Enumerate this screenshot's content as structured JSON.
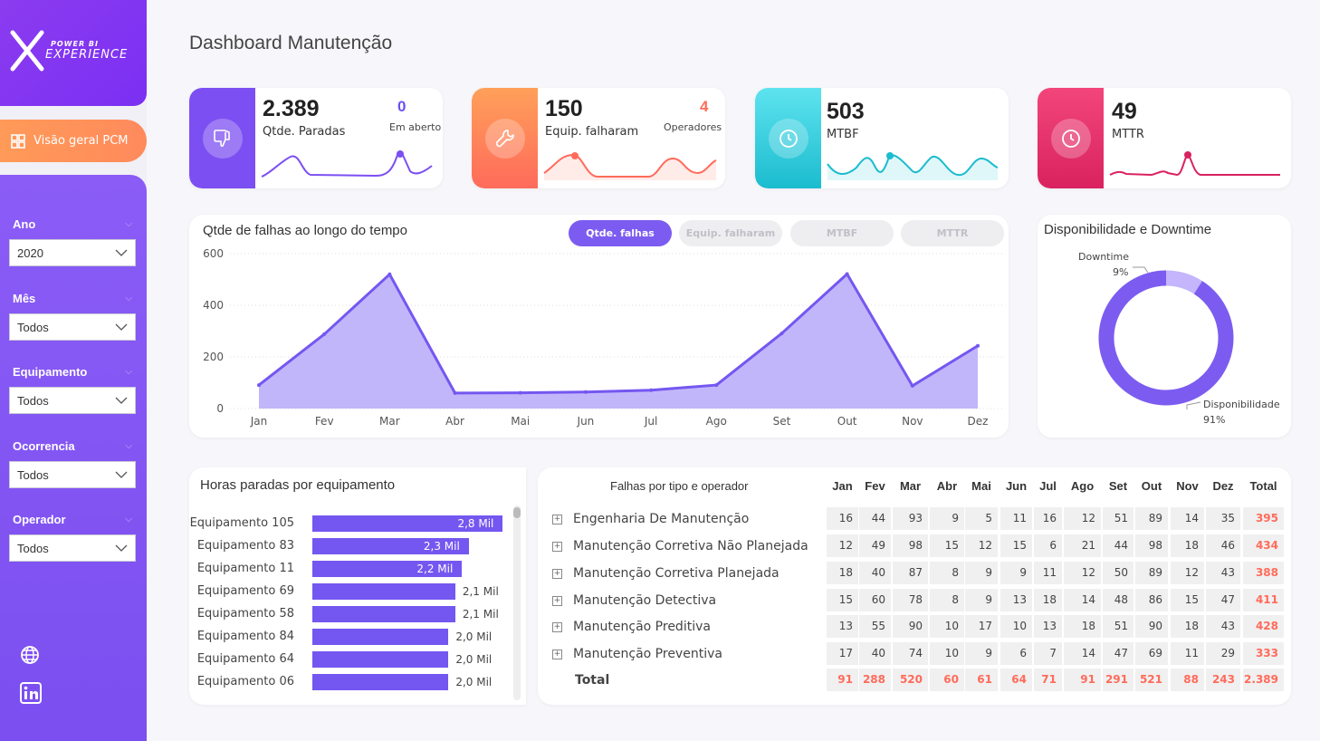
{
  "brand": {
    "line1": "POWER BI",
    "line2": "EXPERIENCE"
  },
  "nav": {
    "label": "Visão geral PCM"
  },
  "filters": [
    {
      "label": "Ano",
      "value": "2020"
    },
    {
      "label": "Mês",
      "value": "Todos"
    },
    {
      "label": "Equipamento",
      "value": "Todos"
    },
    {
      "label": "Ocorrencia",
      "value": "Todos"
    },
    {
      "label": "Operador",
      "value": "Todos"
    }
  ],
  "title": "Dashboard Manutenção",
  "kpis": [
    {
      "value": "2.389",
      "label": "Qtde. Paradas",
      "sub_value": "0",
      "sub_label": "Em aberto",
      "color": "#7c4ff2",
      "sub_color": "#6e4ff0",
      "icon": "thumbs-down-icon"
    },
    {
      "value": "150",
      "label": "Equip. falharam",
      "sub_value": "4",
      "sub_label": "Operadores",
      "color": "#ff7b5c",
      "sub_color": "#ff6b5b",
      "icon": "wrench-icon"
    },
    {
      "value": "503",
      "label": "MTBF",
      "color": "#22c7d6",
      "icon": "clock-icon"
    },
    {
      "value": "49",
      "label": "MTTR",
      "color": "#e8336d",
      "icon": "clock-icon"
    }
  ],
  "falhas_chart": {
    "title": "Qtde de falhas ao longo do tempo",
    "tabs": [
      "Qtde. falhas",
      "Equip. falharam",
      "MTBF",
      "MTTR"
    ],
    "active_tab": 0
  },
  "donut": {
    "title": "Disponibilidade e Downtime",
    "downtime_label": "Downtime",
    "downtime_pct": "9%",
    "disp_label": "Disponibilidade",
    "disp_pct": "91%"
  },
  "horas": {
    "title": "Horas paradas por equipamento"
  },
  "matrix": {
    "row_header": "Falhas por tipo e operador",
    "months": [
      "Jan",
      "Fev",
      "Mar",
      "Abr",
      "Mai",
      "Jun",
      "Jul",
      "Ago",
      "Set",
      "Out",
      "Nov",
      "Dez",
      "Total"
    ],
    "rows": [
      {
        "label": "Engenharia De Manutenção",
        "values": [
          "16",
          "44",
          "93",
          "9",
          "5",
          "11",
          "16",
          "12",
          "51",
          "89",
          "14",
          "35",
          "395"
        ]
      },
      {
        "label": "Manutenção Corretiva Não Planejada",
        "values": [
          "12",
          "49",
          "98",
          "15",
          "12",
          "15",
          "6",
          "21",
          "44",
          "98",
          "18",
          "46",
          "434"
        ]
      },
      {
        "label": "Manutenção Corretiva Planejada",
        "values": [
          "18",
          "40",
          "87",
          "8",
          "9",
          "9",
          "11",
          "12",
          "50",
          "89",
          "12",
          "43",
          "388"
        ]
      },
      {
        "label": "Manutenção Detectiva",
        "values": [
          "15",
          "60",
          "78",
          "8",
          "9",
          "13",
          "18",
          "14",
          "48",
          "86",
          "15",
          "47",
          "411"
        ]
      },
      {
        "label": "Manutenção Preditiva",
        "values": [
          "13",
          "55",
          "90",
          "10",
          "17",
          "10",
          "13",
          "18",
          "51",
          "90",
          "18",
          "43",
          "428"
        ]
      },
      {
        "label": "Manutenção Preventiva",
        "values": [
          "17",
          "40",
          "74",
          "10",
          "9",
          "6",
          "7",
          "14",
          "47",
          "69",
          "11",
          "29",
          "333"
        ]
      }
    ],
    "total_label": "Total",
    "totals": [
      "91",
      "288",
      "520",
      "60",
      "61",
      "64",
      "71",
      "91",
      "291",
      "521",
      "88",
      "243",
      "2.389"
    ]
  },
  "chart_data": [
    {
      "type": "area",
      "title": "Qtde de falhas ao longo do tempo",
      "categories": [
        "Jan",
        "Fev",
        "Mar",
        "Abr",
        "Mai",
        "Jun",
        "Jul",
        "Ago",
        "Set",
        "Out",
        "Nov",
        "Dez"
      ],
      "values": [
        91,
        288,
        520,
        60,
        61,
        64,
        71,
        91,
        291,
        521,
        88,
        243
      ],
      "ylim": [
        0,
        600
      ],
      "yticks": [
        "0",
        "200",
        "400",
        "600"
      ],
      "grid": true,
      "color": "#7457f0"
    },
    {
      "type": "pie",
      "title": "Disponibilidade e Downtime",
      "categories": [
        "Downtime",
        "Disponibilidade"
      ],
      "values": [
        9,
        91
      ],
      "colors": [
        "#c4b5fd",
        "#7c5cf0"
      ]
    },
    {
      "type": "bar",
      "title": "Horas paradas por equipamento",
      "categories": [
        "Equipamento 105",
        "Equipamento 83",
        "Equipamento 11",
        "Equipamento 69",
        "Equipamento 58",
        "Equipamento 84",
        "Equipamento 64",
        "Equipamento 06"
      ],
      "values": [
        2.8,
        2.3,
        2.2,
        2.1,
        2.1,
        2.0,
        2.0,
        2.0
      ],
      "labels": [
        "2,8 Mil",
        "2,3 Mil",
        "2,2 Mil",
        "2,1 Mil",
        "2,1 Mil",
        "2,0 Mil",
        "2,0 Mil",
        "2,0 Mil"
      ],
      "xlim": [
        0,
        2.9
      ],
      "color": "#7457f0"
    }
  ]
}
